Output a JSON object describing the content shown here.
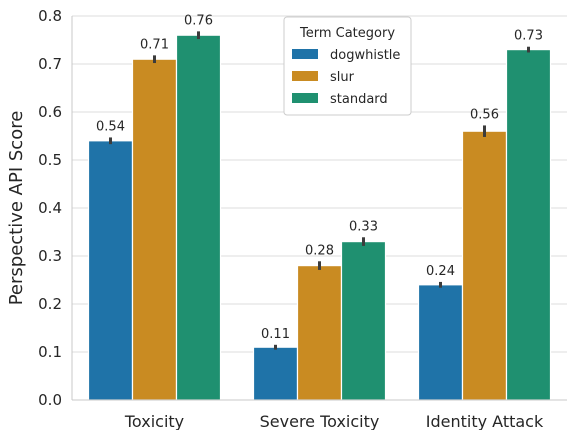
{
  "chart_data": {
    "type": "bar",
    "categories": [
      "Toxicity",
      "Severe Toxicity",
      "Identity Attack"
    ],
    "series": [
      {
        "name": "dogwhistle",
        "color": "#1f73a8",
        "values": [
          0.54,
          0.11,
          0.24
        ],
        "error": [
          0.007,
          0.005,
          0.006
        ]
      },
      {
        "name": "slur",
        "color": "#c98b22",
        "values": [
          0.71,
          0.28,
          0.56
        ],
        "error": [
          0.008,
          0.009,
          0.012
        ]
      },
      {
        "name": "standard",
        "color": "#1f9070",
        "values": [
          0.76,
          0.33,
          0.73
        ],
        "error": [
          0.008,
          0.009,
          0.006
        ]
      }
    ],
    "data_labels": [
      [
        "0.54",
        "0.11",
        "0.24"
      ],
      [
        "0.71",
        "0.28",
        "0.56"
      ],
      [
        "0.76",
        "0.33",
        "0.73"
      ]
    ],
    "yticks": [
      "0.0",
      "0.1",
      "0.2",
      "0.3",
      "0.4",
      "0.5",
      "0.6",
      "0.7",
      "0.8"
    ],
    "ylabel": "Perspective API Score",
    "xlabel": "",
    "ylim": [
      0,
      0.8
    ],
    "grid": "horizontal",
    "legend": {
      "title": "Term Category",
      "placement": "top-center"
    }
  }
}
